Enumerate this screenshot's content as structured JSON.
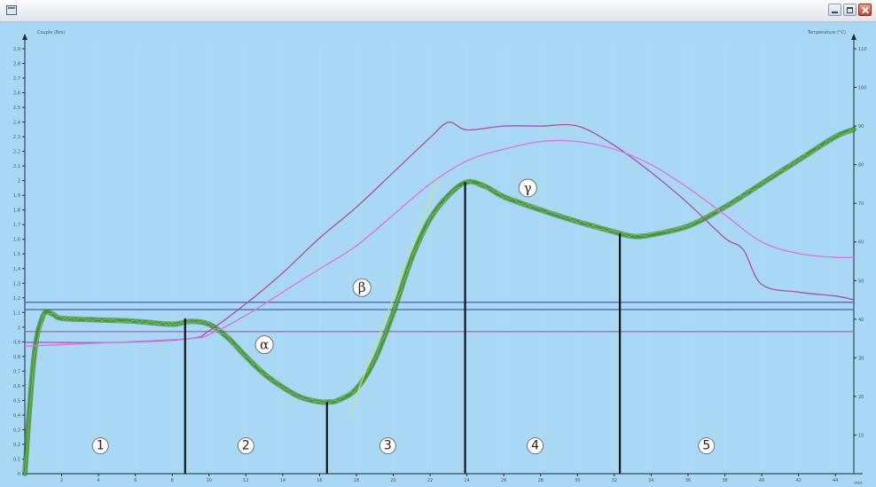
{
  "window": {
    "buttons": [
      "minimize",
      "maximize",
      "close"
    ],
    "icon": "app-window-icon"
  },
  "chart_data": {
    "type": "line",
    "left_axis": {
      "label": "Couple (Nm)",
      "ticks": [
        "0",
        "0,1",
        "0,2",
        "0,3",
        "0,4",
        "0,5",
        "0,6",
        "0,7",
        "0,8",
        "0,9",
        "1",
        "1,1",
        "1,2",
        "1,3",
        "1,4",
        "1,5",
        "1,6",
        "1,7",
        "1,8",
        "1,9",
        "2",
        "2,1",
        "2,2",
        "2,3",
        "2,4",
        "2,5",
        "2,6",
        "2,7",
        "2,8",
        "2,9"
      ],
      "range": [
        0,
        2.9
      ]
    },
    "right_axis": {
      "label": "Température (°C)",
      "ticks": [
        "110",
        "100",
        "90",
        "80",
        "70",
        "60",
        "50",
        "40",
        "30",
        "20",
        "10"
      ],
      "range": [
        0,
        110
      ]
    },
    "x_axis": {
      "label": "min",
      "ticks": [
        "2",
        "4",
        "6",
        "8",
        "10",
        "12",
        "14",
        "16",
        "18",
        "20",
        "22",
        "24",
        "26",
        "28",
        "30",
        "32",
        "34",
        "36",
        "38",
        "40",
        "42",
        "44"
      ],
      "range": [
        0,
        45
      ]
    },
    "reference_lines": {
      "torque": [
        0.97,
        1.12,
        1.17
      ],
      "colors": [
        "#c05ab0",
        "#4c5fa8",
        "#4c5fa8"
      ]
    },
    "series": [
      {
        "color": "#3f9a2c",
        "x": [
          0,
          0.5,
          1,
          1.5,
          2,
          4,
          6,
          8,
          9,
          10,
          11,
          12,
          13,
          14,
          15,
          16,
          16.5,
          17,
          18,
          19,
          20,
          21,
          22,
          23,
          24,
          25,
          26,
          28,
          30,
          32,
          33,
          34,
          36,
          38,
          40,
          42,
          44,
          45
        ],
        "y": [
          0.0,
          0.8,
          1.08,
          1.09,
          1.06,
          1.05,
          1.04,
          1.02,
          1.04,
          1.02,
          0.93,
          0.8,
          0.68,
          0.59,
          0.52,
          0.49,
          0.49,
          0.5,
          0.58,
          0.78,
          1.1,
          1.47,
          1.74,
          1.9,
          1.99,
          1.96,
          1.89,
          1.8,
          1.72,
          1.65,
          1.62,
          1.63,
          1.69,
          1.82,
          1.98,
          2.14,
          2.3,
          2.35
        ]
      },
      {
        "color": "#b04aa8",
        "x": [
          0,
          5,
          9,
          10,
          12,
          14,
          16,
          18,
          20,
          22,
          23,
          24,
          26,
          28,
          30,
          32,
          34,
          36,
          38,
          39,
          40,
          42,
          44,
          45
        ],
        "y": [
          34,
          34,
          35,
          37,
          44,
          52,
          61,
          69,
          78,
          87,
          91,
          89,
          90,
          90,
          90,
          85,
          78,
          70,
          61,
          58,
          49,
          47,
          46,
          45
        ]
      },
      {
        "color": "#e070dc",
        "x": [
          0,
          5,
          9,
          10,
          12,
          14,
          16,
          18,
          20,
          22,
          24,
          26,
          28,
          30,
          32,
          34,
          36,
          38,
          40,
          42,
          44,
          45
        ],
        "y": [
          33,
          34,
          35,
          36,
          41,
          47,
          53,
          59,
          67,
          75,
          81,
          84,
          86,
          86,
          84,
          80,
          74,
          67,
          60,
          57,
          56,
          56
        ]
      },
      {
        "color": "#c8e66a",
        "x": [
          17.6,
          22.4
        ],
        "y": [
          0.4,
          2.0
        ]
      }
    ],
    "phase_markers": {
      "x": [
        8.7,
        16.4,
        23.9,
        32.3
      ],
      "y": [
        1.06,
        0.49,
        1.99,
        1.64
      ]
    },
    "phase_labels": [
      "1",
      "2",
      "3",
      "4",
      "5"
    ],
    "phase_label_x": [
      4.1,
      12.0,
      19.7,
      27.7,
      37.0
    ],
    "phase_label_y": 0.19,
    "annotations": [
      "α",
      "β",
      "γ"
    ],
    "annotation_x": [
      13.0,
      18.3,
      27.3
    ],
    "annotation_y": [
      0.88,
      1.27,
      1.95
    ]
  }
}
